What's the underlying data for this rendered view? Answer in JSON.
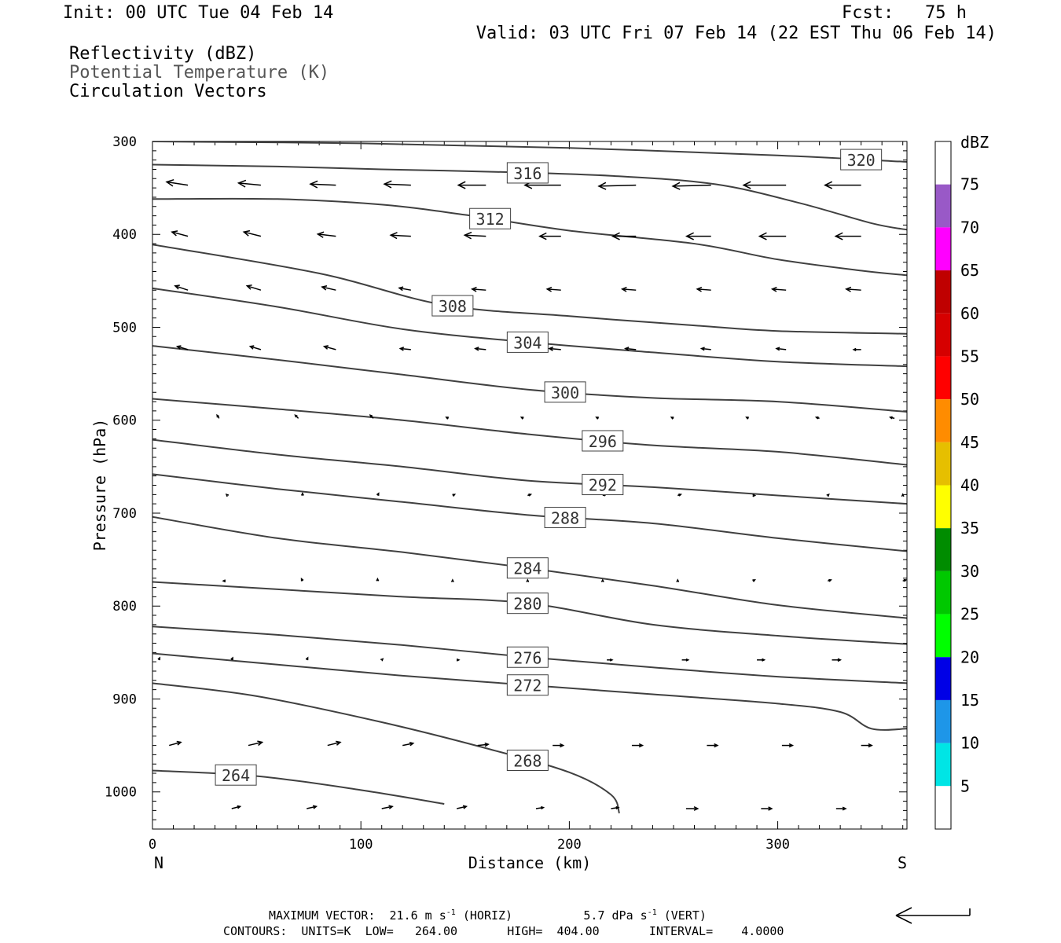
{
  "header": {
    "init": "Init: 00 UTC Tue 04 Feb 14",
    "fcst": "Fcst:   75 h",
    "valid": "Valid: 03 UTC Fri 07 Feb 14 (22 EST Thu 06 Feb 14)"
  },
  "legend": {
    "line1": "Reflectivity (dBZ)",
    "line2": "Potential Temperature (K)",
    "line3": "Circulation Vectors"
  },
  "footer": {
    "max_vector_label": "MAXIMUM VECTOR:",
    "max_horiz": "21.6 m s",
    "horiz_tag": "(HORIZ)",
    "max_vert": "5.7 dPa s",
    "vert_tag": "(VERT)",
    "superscript": "-1",
    "contours": "CONTOURS:  UNITS=K  LOW=   264.00       HIGH=  404.00       INTERVAL=    4.0000"
  },
  "chart_data": {
    "type": "cross-section",
    "title": "",
    "xlabel": "Distance (km)",
    "ylabel": "Pressure (hPa)",
    "x_ticks": [
      0,
      100,
      200,
      300
    ],
    "y_ticks": [
      300,
      400,
      500,
      600,
      700,
      800,
      900,
      1000
    ],
    "xlim": [
      0,
      362
    ],
    "ylim": [
      300,
      1040
    ],
    "y_inverted": true,
    "x_end_labels": {
      "left": "N",
      "right": "S"
    },
    "contour_field": "Potential Temperature (K)",
    "contour_color": "#404040",
    "contours": [
      {
        "level": 264,
        "label": "264",
        "points": [
          [
            0,
            977
          ],
          [
            50,
            983
          ],
          [
            100,
            998
          ],
          [
            140,
            1013
          ]
        ]
      },
      {
        "level": 268,
        "label": "268",
        "points": [
          [
            0,
            883
          ],
          [
            50,
            897
          ],
          [
            110,
            925
          ],
          [
            160,
            953
          ],
          [
            200,
            979
          ],
          [
            220,
            1003
          ],
          [
            224,
            1023
          ]
        ]
      },
      {
        "level": 272,
        "label": "272",
        "points": [
          [
            0,
            851
          ],
          [
            60,
            863
          ],
          [
            120,
            875
          ],
          [
            180,
            885
          ],
          [
            240,
            895
          ],
          [
            300,
            905
          ],
          [
            330,
            914
          ],
          [
            345,
            932
          ],
          [
            362,
            932
          ]
        ]
      },
      {
        "level": 276,
        "label": "276",
        "points": [
          [
            0,
            822
          ],
          [
            60,
            831
          ],
          [
            120,
            842
          ],
          [
            180,
            855
          ],
          [
            240,
            866
          ],
          [
            300,
            876
          ],
          [
            362,
            883
          ]
        ]
      },
      {
        "level": 280,
        "label": "280",
        "points": [
          [
            0,
            774
          ],
          [
            60,
            782
          ],
          [
            120,
            790
          ],
          [
            180,
            797
          ],
          [
            240,
            820
          ],
          [
            300,
            832
          ],
          [
            362,
            841
          ]
        ]
      },
      {
        "level": 284,
        "label": "284",
        "points": [
          [
            0,
            704
          ],
          [
            60,
            727
          ],
          [
            120,
            742
          ],
          [
            180,
            759
          ],
          [
            240,
            778
          ],
          [
            300,
            799
          ],
          [
            362,
            813
          ]
        ]
      },
      {
        "level": 288,
        "label": "288",
        "points": [
          [
            0,
            658
          ],
          [
            60,
            674
          ],
          [
            120,
            688
          ],
          [
            180,
            702
          ],
          [
            240,
            711
          ],
          [
            300,
            727
          ],
          [
            362,
            741
          ]
        ]
      },
      {
        "level": 292,
        "label": "292",
        "points": [
          [
            0,
            621
          ],
          [
            60,
            637
          ],
          [
            120,
            650
          ],
          [
            180,
            665
          ],
          [
            240,
            672
          ],
          [
            300,
            681
          ],
          [
            362,
            690
          ]
        ]
      },
      {
        "level": 296,
        "label": "296",
        "points": [
          [
            0,
            577
          ],
          [
            60,
            588
          ],
          [
            120,
            600
          ],
          [
            180,
            615
          ],
          [
            240,
            627
          ],
          [
            300,
            634
          ],
          [
            362,
            648
          ]
        ]
      },
      {
        "level": 300,
        "label": "300",
        "points": [
          [
            0,
            520
          ],
          [
            60,
            535
          ],
          [
            120,
            551
          ],
          [
            180,
            567
          ],
          [
            240,
            576
          ],
          [
            300,
            580
          ],
          [
            362,
            591
          ]
        ]
      },
      {
        "level": 304,
        "label": "304",
        "points": [
          [
            0,
            458
          ],
          [
            60,
            478
          ],
          [
            120,
            502
          ],
          [
            180,
            516
          ],
          [
            240,
            527
          ],
          [
            300,
            537
          ],
          [
            362,
            542
          ]
        ]
      },
      {
        "level": 308,
        "label": "308",
        "points": [
          [
            0,
            411
          ],
          [
            80,
            442
          ],
          [
            140,
            476
          ],
          [
            200,
            488
          ],
          [
            260,
            498
          ],
          [
            300,
            504
          ],
          [
            362,
            507
          ]
        ]
      },
      {
        "level": 312,
        "label": "312",
        "points": [
          [
            0,
            362
          ],
          [
            60,
            362
          ],
          [
            110,
            368
          ],
          [
            150,
            379
          ],
          [
            200,
            396
          ],
          [
            260,
            410
          ],
          [
            300,
            427
          ],
          [
            340,
            439
          ],
          [
            362,
            444
          ]
        ]
      },
      {
        "level": 316,
        "label": "316",
        "points": [
          [
            0,
            325
          ],
          [
            60,
            327
          ],
          [
            110,
            330
          ],
          [
            170,
            333
          ],
          [
            220,
            337
          ],
          [
            270,
            346
          ],
          [
            310,
            366
          ],
          [
            345,
            388
          ],
          [
            362,
            395
          ]
        ]
      },
      {
        "level": 320,
        "label": "320",
        "points": [
          [
            0,
            300
          ],
          [
            100,
            302
          ],
          [
            200,
            307
          ],
          [
            300,
            315
          ],
          [
            362,
            322
          ]
        ]
      }
    ],
    "vector_field": "Circulation Vectors",
    "vectors": [
      {
        "p": 347,
        "x": [
          17,
          52,
          88,
          124,
          160,
          196,
          232,
          268,
          304,
          340
        ],
        "u": [
          -20,
          -21,
          -24,
          -25,
          -26,
          -34,
          -35,
          -36,
          -40,
          -34
        ],
        "v": [
          -3,
          -2,
          -1,
          -1,
          0,
          0,
          1,
          1,
          0,
          0
        ]
      },
      {
        "p": 402,
        "x": [
          17,
          52,
          88,
          124,
          160,
          196,
          232,
          268,
          304,
          340
        ],
        "u": [
          -15,
          -16,
          -17,
          -19,
          -20,
          -20,
          -22,
          -23,
          -25,
          -24
        ],
        "v": [
          -4,
          -4,
          -2,
          -1,
          -1,
          0,
          0,
          0,
          0,
          0
        ]
      },
      {
        "p": 460,
        "x": [
          17,
          52,
          88,
          124,
          160,
          196,
          232,
          268,
          304,
          340
        ],
        "u": [
          -12,
          -13,
          -13,
          -11,
          -13,
          -13,
          -13,
          -13,
          -13,
          -14
        ],
        "v": [
          -4,
          -4,
          -3,
          -2,
          -1,
          -1,
          -1,
          -1,
          -1,
          -1
        ]
      },
      {
        "p": 524,
        "x": [
          17,
          52,
          88,
          124,
          160,
          196,
          232,
          268,
          304,
          340
        ],
        "u": [
          -10,
          -10,
          -11,
          -10,
          -10,
          -11,
          -10,
          -9,
          -9,
          -7
        ],
        "v": [
          -3,
          -3,
          -3,
          -1,
          -1,
          -1,
          -1,
          -1,
          -1,
          0
        ]
      },
      {
        "p": 598,
        "x": [
          32,
          70,
          106,
          142,
          178,
          214,
          250,
          286,
          320,
          356
        ],
        "u": [
          -2,
          -3,
          -3,
          -2,
          -2,
          -2,
          -2,
          -2,
          -3,
          -4
        ],
        "v": [
          -3,
          -3,
          -3,
          -1,
          -1,
          -1,
          -1,
          -1,
          -1,
          -1
        ]
      },
      {
        "p": 681,
        "x": [
          36,
          72,
          108,
          144,
          180,
          216,
          252,
          288,
          324,
          360
        ],
        "u": [
          -1,
          0,
          1,
          2,
          3,
          3,
          3,
          2,
          1,
          0
        ],
        "v": [
          -1,
          -2,
          -2,
          -1,
          -1,
          -1,
          -1,
          0,
          -1,
          -1
        ]
      },
      {
        "p": 773,
        "x": [
          35,
          72,
          108,
          144,
          180,
          216,
          252,
          288,
          324,
          360
        ],
        "u": [
          -2,
          -1,
          0,
          0,
          0,
          0,
          0,
          2,
          3,
          3
        ],
        "v": [
          0,
          -2,
          -2,
          -1,
          -1,
          -1,
          -1,
          -1,
          -1,
          -1
        ]
      },
      {
        "p": 858,
        "x": [
          3,
          38,
          74,
          110,
          146,
          182,
          218,
          254,
          290,
          326
        ],
        "u": [
          1,
          1,
          1,
          1,
          2,
          3,
          5,
          6,
          7,
          8
        ],
        "v": [
          -2,
          -2,
          -2,
          -1,
          0,
          0,
          0,
          0,
          0,
          0
        ]
      },
      {
        "p": 950,
        "x": [
          8,
          46,
          84,
          120,
          156,
          192,
          230,
          266,
          302,
          340
        ],
        "u": [
          11,
          13,
          12,
          10,
          10,
          10,
          10,
          10,
          10,
          10
        ],
        "v": [
          -3,
          -3,
          -3,
          -2,
          -1,
          0,
          0,
          0,
          0,
          0
        ]
      },
      {
        "p": 1018,
        "x": [
          38,
          74,
          110,
          146,
          184,
          220,
          256,
          292,
          328
        ],
        "u": [
          8,
          9,
          10,
          9,
          7,
          7,
          11,
          10,
          9
        ],
        "v": [
          -2,
          -2,
          -2,
          -2,
          -1,
          -1,
          0,
          0,
          0
        ]
      }
    ],
    "max_vector": {
      "horiz_m_s": 21.6,
      "vert_dPa_s": 5.7
    },
    "colorbar": {
      "label": "dBZ",
      "levels": [
        5,
        10,
        15,
        20,
        25,
        30,
        35,
        40,
        45,
        50,
        55,
        60,
        65,
        70,
        75
      ],
      "colors": [
        "#ffffff",
        "#00e5e5",
        "#1e96e8",
        "#0000e6",
        "#00ff00",
        "#00c800",
        "#008c00",
        "#ffff00",
        "#e6bf00",
        "#ff8c00",
        "#ff0000",
        "#d60000",
        "#bf0000",
        "#ff00ff",
        "#9959c7",
        "#ffffff"
      ]
    }
  }
}
